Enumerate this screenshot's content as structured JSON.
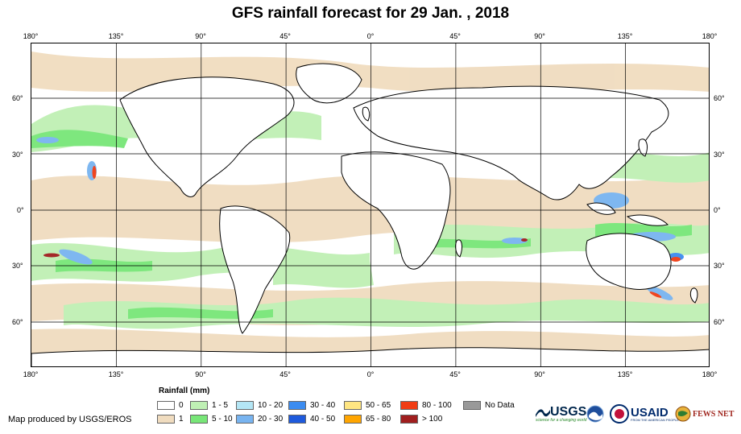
{
  "title": "GFS rainfall forecast for 29 Jan. , 2018",
  "lon_labels": [
    "180°",
    "135°",
    "90°",
    "45°",
    "0°",
    "45°",
    "90°",
    "135°",
    "180°"
  ],
  "lat_labels": [
    "60°",
    "30°",
    "0°",
    "30°",
    "60°"
  ],
  "legend": {
    "title": "Rainfall (mm)",
    "items": [
      {
        "label": "0",
        "color": "#ffffff"
      },
      {
        "label": "1",
        "color": "#f0dcbf"
      },
      {
        "label": "1 - 5",
        "color": "#bff0b4"
      },
      {
        "label": "5 - 10",
        "color": "#78e678"
      },
      {
        "label": "10 - 20",
        "color": "#b4e6f5"
      },
      {
        "label": "20 - 30",
        "color": "#78b4f0"
      },
      {
        "label": "30 - 40",
        "color": "#3c8cf0"
      },
      {
        "label": "40 - 50",
        "color": "#1e5adc"
      },
      {
        "label": "50 - 65",
        "color": "#ffe682"
      },
      {
        "label": "65 - 80",
        "color": "#ffa500"
      },
      {
        "label": "80 - 100",
        "color": "#f03c14"
      },
      {
        "label": "> 100",
        "color": "#a01e1e"
      },
      {
        "label": "No Data",
        "color": "#999999"
      }
    ]
  },
  "credit": "Map produced by USGS/EROS",
  "logos": {
    "usgs": "USGS",
    "usgs_tagline": "science for a changing world",
    "usaid": "USAID",
    "usaid_tagline": "FROM THE AMERICAN PEOPLE",
    "fewsnet": "FEWS NET"
  }
}
